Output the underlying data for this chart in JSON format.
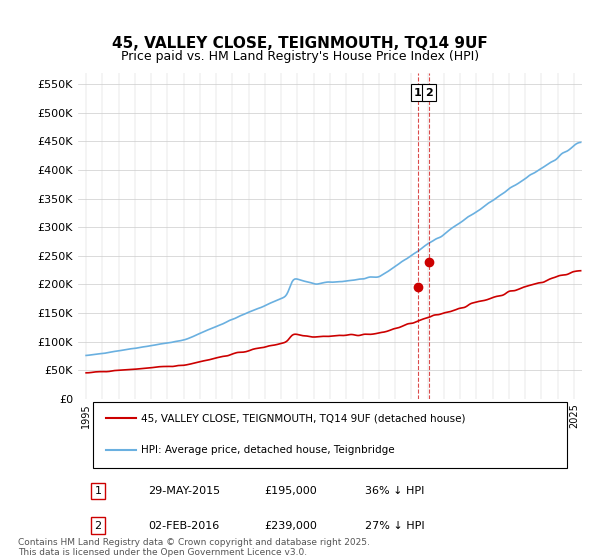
{
  "title": "45, VALLEY CLOSE, TEIGNMOUTH, TQ14 9UF",
  "subtitle": "Price paid vs. HM Land Registry's House Price Index (HPI)",
  "ylabel_ticks": [
    "£0",
    "£50K",
    "£100K",
    "£150K",
    "£200K",
    "£250K",
    "£300K",
    "£350K",
    "£400K",
    "£450K",
    "£500K",
    "£550K"
  ],
  "ytick_values": [
    0,
    50000,
    100000,
    150000,
    200000,
    250000,
    300000,
    350000,
    400000,
    450000,
    500000,
    550000
  ],
  "ylim": [
    0,
    570000
  ],
  "xlim_year": [
    1994.5,
    2025.5
  ],
  "hpi_color": "#6ab0e0",
  "price_color": "#cc0000",
  "annotation_color": "#cc0000",
  "vline_color": "#cc0000",
  "purchase1_year": 2015.41,
  "purchase1_price": 195000,
  "purchase1_label": "1",
  "purchase2_year": 2016.09,
  "purchase2_price": 239000,
  "purchase2_label": "2",
  "legend_entry1": "45, VALLEY CLOSE, TEIGNMOUTH, TQ14 9UF (detached house)",
  "legend_entry2": "HPI: Average price, detached house, Teignbridge",
  "table_row1": [
    "1",
    "29-MAY-2015",
    "£195,000",
    "36% ↓ HPI"
  ],
  "table_row2": [
    "2",
    "02-FEB-2016",
    "£239,000",
    "27% ↓ HPI"
  ],
  "footnote": "Contains HM Land Registry data © Crown copyright and database right 2025.\nThis data is licensed under the Open Government Licence v3.0.",
  "background_color": "#ffffff",
  "grid_color": "#cccccc"
}
